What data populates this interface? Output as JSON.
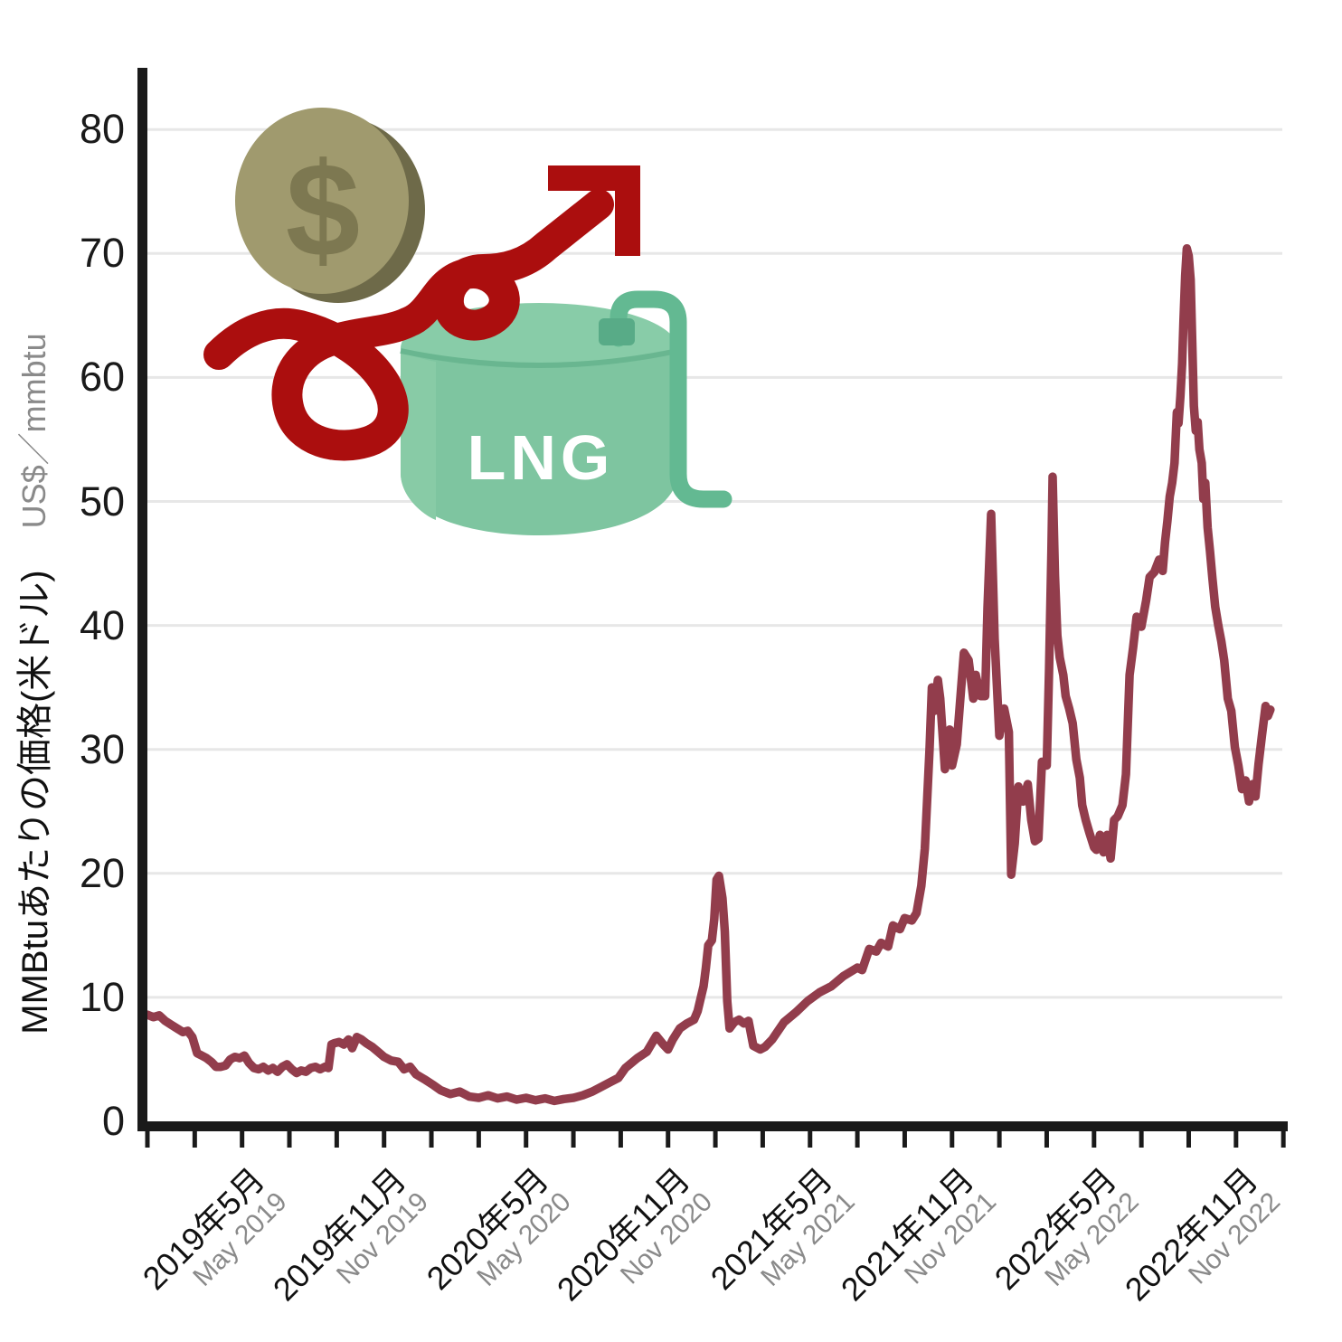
{
  "axes": {
    "y_title_jp": "MMBtuあたりの価格(米ドル)",
    "y_title_en": "US$／mmbtu",
    "grid_color": "#e7e7e7",
    "axis_color": "#1a1a1a",
    "label_color": "#111111",
    "sub_label_color": "#8a8a8a"
  },
  "chart_data": {
    "type": "line",
    "title": "",
    "ylabel": "MMBtuあたりの価格(米ドル) / US$／mmbtu",
    "xlabel": "",
    "ylim": [
      0,
      84
    ],
    "grid": "horizontal",
    "legend": "none",
    "x_unit": "months_since_2019-01",
    "y_ticks": [
      0,
      10,
      20,
      30,
      40,
      50,
      60,
      70,
      80
    ],
    "gridline_values": [
      10,
      20,
      30,
      40,
      50,
      60,
      70,
      80
    ],
    "x_minor_tick_step_months": 2,
    "x_minor_tick_range_months": [
      0,
      48
    ],
    "x_tick_labels": [
      {
        "jp": "2019年5月",
        "en": "May 2019",
        "t": 4
      },
      {
        "jp": "2019年11月",
        "en": "Nov 2019",
        "t": 10
      },
      {
        "jp": "2020年5月",
        "en": "May 2020",
        "t": 16
      },
      {
        "jp": "2020年11月",
        "en": "Nov 2020",
        "t": 22
      },
      {
        "jp": "2021年5月",
        "en": "May 2021",
        "t": 28
      },
      {
        "jp": "2021年11月",
        "en": "Nov 2021",
        "t": 34
      },
      {
        "jp": "2022年5月",
        "en": "May 2022",
        "t": 40
      },
      {
        "jp": "2022年11月",
        "en": "Nov 2022",
        "t": 46
      }
    ],
    "series": [
      {
        "name": "LNG",
        "color": "#923d4c",
        "points": [
          [
            0,
            8.6
          ],
          [
            0.25,
            8.4
          ],
          [
            0.5,
            8.55
          ],
          [
            0.75,
            8.1
          ],
          [
            1,
            7.8
          ],
          [
            1.25,
            7.5
          ],
          [
            1.5,
            7.2
          ],
          [
            1.7,
            7.3
          ],
          [
            1.9,
            6.8
          ],
          [
            2.1,
            5.5
          ],
          [
            2.3,
            5.3
          ],
          [
            2.5,
            5.1
          ],
          [
            2.7,
            4.8
          ],
          [
            2.9,
            4.4
          ],
          [
            3.1,
            4.4
          ],
          [
            3.3,
            4.5
          ],
          [
            3.5,
            5
          ],
          [
            3.7,
            5.2
          ],
          [
            3.9,
            5.1
          ],
          [
            4.1,
            5.3
          ],
          [
            4.3,
            4.7
          ],
          [
            4.5,
            4.3
          ],
          [
            4.7,
            4.2
          ],
          [
            4.9,
            4.4
          ],
          [
            5.1,
            4.1
          ],
          [
            5.3,
            4.3
          ],
          [
            5.5,
            4
          ],
          [
            5.7,
            4.4
          ],
          [
            5.9,
            4.6
          ],
          [
            6.1,
            4.2
          ],
          [
            6.3,
            3.9
          ],
          [
            6.5,
            4.1
          ],
          [
            6.7,
            4
          ],
          [
            6.9,
            4.3
          ],
          [
            7.1,
            4.4
          ],
          [
            7.3,
            4.2
          ],
          [
            7.5,
            4.4
          ],
          [
            7.65,
            4.3
          ],
          [
            7.78,
            6.2
          ],
          [
            7.9,
            6.3
          ],
          [
            8.1,
            6.4
          ],
          [
            8.3,
            6.2
          ],
          [
            8.5,
            6.6
          ],
          [
            8.65,
            5.9
          ],
          [
            8.85,
            6.8
          ],
          [
            9.05,
            6.6
          ],
          [
            9.25,
            6.3
          ],
          [
            9.5,
            6
          ],
          [
            9.75,
            5.6
          ],
          [
            10,
            5.2
          ],
          [
            10.3,
            4.9
          ],
          [
            10.6,
            4.8
          ],
          [
            10.85,
            4.2
          ],
          [
            11.1,
            4.4
          ],
          [
            11.35,
            3.8
          ],
          [
            11.7,
            3.4
          ],
          [
            12.1,
            2.9
          ],
          [
            12.4,
            2.5
          ],
          [
            12.8,
            2.2
          ],
          [
            13.2,
            2.4
          ],
          [
            13.6,
            2
          ],
          [
            14,
            1.9
          ],
          [
            14.4,
            2.1
          ],
          [
            14.8,
            1.85
          ],
          [
            15.2,
            2
          ],
          [
            15.6,
            1.75
          ],
          [
            16,
            1.9
          ],
          [
            16.4,
            1.7
          ],
          [
            16.8,
            1.85
          ],
          [
            17.2,
            1.65
          ],
          [
            17.6,
            1.8
          ],
          [
            18,
            1.9
          ],
          [
            18.4,
            2.1
          ],
          [
            18.8,
            2.4
          ],
          [
            19.2,
            2.8
          ],
          [
            19.6,
            3.2
          ],
          [
            19.9,
            3.5
          ],
          [
            20.2,
            4.3
          ],
          [
            20.7,
            5.1
          ],
          [
            21.1,
            5.6
          ],
          [
            21.5,
            6.9
          ],
          [
            21.8,
            6.2
          ],
          [
            22,
            5.8
          ],
          [
            22.2,
            6.6
          ],
          [
            22.5,
            7.5
          ],
          [
            22.8,
            7.9
          ],
          [
            23.1,
            8.2
          ],
          [
            23.25,
            8.9
          ],
          [
            23.35,
            9.7
          ],
          [
            23.5,
            10.9
          ],
          [
            23.6,
            12.4
          ],
          [
            23.7,
            14.2
          ],
          [
            23.85,
            14.6
          ],
          [
            23.95,
            16.3
          ],
          [
            24.05,
            19.5
          ],
          [
            24.15,
            19.8
          ],
          [
            24.3,
            18
          ],
          [
            24.4,
            15.3
          ],
          [
            24.5,
            9.7
          ],
          [
            24.6,
            7.5
          ],
          [
            24.8,
            8
          ],
          [
            25,
            8.2
          ],
          [
            25.2,
            7.9
          ],
          [
            25.4,
            8.1
          ],
          [
            25.6,
            6.1
          ],
          [
            25.9,
            5.8
          ],
          [
            26.1,
            6
          ],
          [
            26.4,
            6.6
          ],
          [
            26.9,
            8
          ],
          [
            27.4,
            8.8
          ],
          [
            27.9,
            9.7
          ],
          [
            28.4,
            10.4
          ],
          [
            28.9,
            10.9
          ],
          [
            29.4,
            11.7
          ],
          [
            30,
            12.4
          ],
          [
            30.2,
            12.2
          ],
          [
            30.5,
            13.9
          ],
          [
            30.8,
            13.7
          ],
          [
            31,
            14.4
          ],
          [
            31.3,
            14.1
          ],
          [
            31.5,
            15.8
          ],
          [
            31.8,
            15.5
          ],
          [
            32,
            16.4
          ],
          [
            32.3,
            16.2
          ],
          [
            32.5,
            16.8
          ],
          [
            32.7,
            19
          ],
          [
            32.85,
            22
          ],
          [
            32.95,
            26
          ],
          [
            33.05,
            30
          ],
          [
            33.15,
            35
          ],
          [
            33.25,
            33.1
          ],
          [
            33.4,
            35.6
          ],
          [
            33.5,
            34.1
          ],
          [
            33.7,
            28.4
          ],
          [
            33.9,
            31.6
          ],
          [
            34,
            28.7
          ],
          [
            34.2,
            30.4
          ],
          [
            34.5,
            37.8
          ],
          [
            34.7,
            37.2
          ],
          [
            34.9,
            34.1
          ],
          [
            35,
            36
          ],
          [
            35.2,
            34.3
          ],
          [
            35.4,
            34.3
          ],
          [
            35.5,
            41.4
          ],
          [
            35.65,
            49
          ],
          [
            35.8,
            38.9
          ],
          [
            36,
            31.1
          ],
          [
            36.2,
            33.3
          ],
          [
            36.4,
            31.4
          ],
          [
            36.5,
            19.9
          ],
          [
            36.65,
            22.4
          ],
          [
            36.8,
            27
          ],
          [
            37,
            25.8
          ],
          [
            37.2,
            27.2
          ],
          [
            37.35,
            24.3
          ],
          [
            37.5,
            22.6
          ],
          [
            37.65,
            22.8
          ],
          [
            37.8,
            29
          ],
          [
            38,
            28.7
          ],
          [
            38.1,
            36.5
          ],
          [
            38.2,
            46
          ],
          [
            38.25,
            52
          ],
          [
            38.35,
            44
          ],
          [
            38.45,
            39.2
          ],
          [
            38.55,
            37.4
          ],
          [
            38.7,
            36
          ],
          [
            38.8,
            34.3
          ],
          [
            38.95,
            33.3
          ],
          [
            39.1,
            32.1
          ],
          [
            39.25,
            29.2
          ],
          [
            39.4,
            27.7
          ],
          [
            39.5,
            25.5
          ],
          [
            39.65,
            24.3
          ],
          [
            39.8,
            23.3
          ],
          [
            40,
            22.1
          ],
          [
            40.1,
            21.9
          ],
          [
            40.25,
            23.1
          ],
          [
            40.4,
            21.7
          ],
          [
            40.55,
            23.1
          ],
          [
            40.7,
            21.2
          ],
          [
            40.85,
            24.3
          ],
          [
            41,
            24.6
          ],
          [
            41.2,
            25.5
          ],
          [
            41.35,
            28
          ],
          [
            41.5,
            36
          ],
          [
            41.65,
            38.2
          ],
          [
            41.8,
            40.7
          ],
          [
            42,
            39.9
          ],
          [
            42.2,
            42
          ],
          [
            42.35,
            43.9
          ],
          [
            42.55,
            44.3
          ],
          [
            42.75,
            45.3
          ],
          [
            42.9,
            44.4
          ],
          [
            43,
            46.7
          ],
          [
            43.1,
            48.4
          ],
          [
            43.2,
            50.4
          ],
          [
            43.3,
            51.5
          ],
          [
            43.4,
            53.1
          ],
          [
            43.5,
            57.2
          ],
          [
            43.57,
            56.3
          ],
          [
            43.65,
            58.5
          ],
          [
            43.72,
            61.1
          ],
          [
            43.78,
            64.5
          ],
          [
            43.85,
            68.2
          ],
          [
            43.92,
            70.4
          ],
          [
            44,
            69.8
          ],
          [
            44.08,
            67.9
          ],
          [
            44.15,
            62.8
          ],
          [
            44.22,
            57.7
          ],
          [
            44.3,
            55.7
          ],
          [
            44.38,
            56.4
          ],
          [
            44.45,
            54.2
          ],
          [
            44.55,
            53.1
          ],
          [
            44.62,
            50.2
          ],
          [
            44.7,
            51.5
          ],
          [
            44.8,
            47.9
          ],
          [
            44.9,
            46
          ],
          [
            45,
            43.8
          ],
          [
            45.12,
            41.5
          ],
          [
            45.25,
            40
          ],
          [
            45.38,
            38.7
          ],
          [
            45.5,
            37.2
          ],
          [
            45.65,
            34.1
          ],
          [
            45.8,
            33.1
          ],
          [
            45.95,
            30.2
          ],
          [
            46.1,
            28.7
          ],
          [
            46.25,
            26.8
          ],
          [
            46.4,
            27.5
          ],
          [
            46.55,
            25.8
          ],
          [
            46.7,
            27.2
          ],
          [
            46.82,
            26.2
          ],
          [
            46.95,
            28.8
          ],
          [
            47.1,
            31.2
          ],
          [
            47.25,
            33.5
          ],
          [
            47.35,
            32.7
          ],
          [
            47.45,
            33.2
          ]
        ]
      }
    ]
  },
  "illustration": {
    "coin": {
      "symbol": "$",
      "body_color": "#a09a6e",
      "shadow_color": "#6e6a49",
      "symbol_color": "#7d7851"
    },
    "arrow": {
      "color": "#ab0e0e"
    },
    "tank": {
      "label": "LNG",
      "label_color": "#ffffff",
      "body_color": "#7ec5a0",
      "top_color": "#88cca8",
      "highlight_color": "#88cba6",
      "rim_color": "#69b690",
      "pipe_color": "#63b992",
      "nozzle_color": "#58ab87"
    }
  }
}
